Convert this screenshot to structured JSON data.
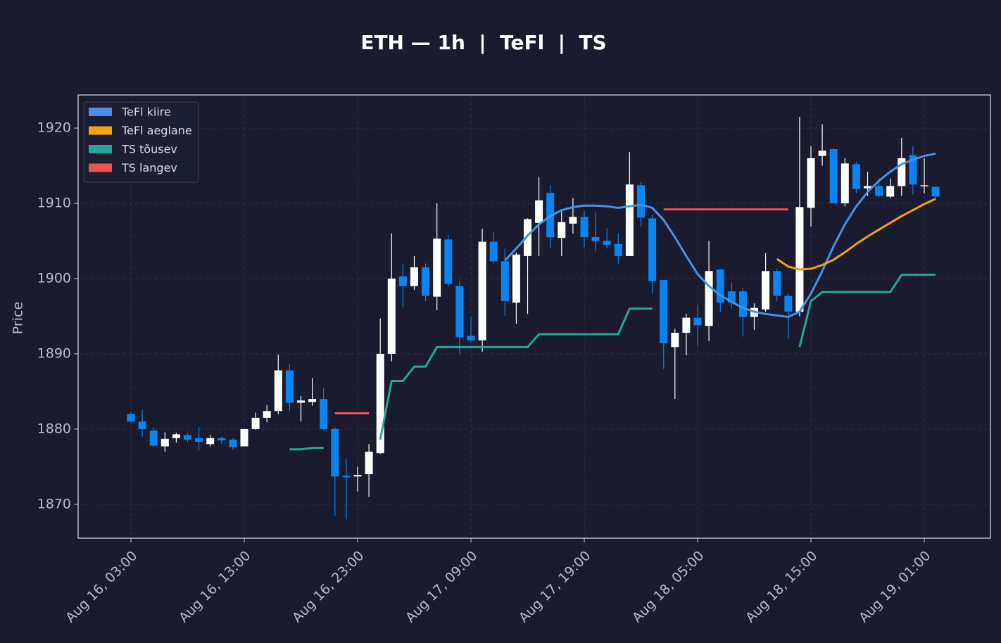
{
  "chart_data": {
    "type": "candlestick",
    "title": "ETH — 1h  |  TeFl  |  TS",
    "ylabel": "Price",
    "x": [
      "Aug 16, 03:00",
      "Aug 16, 04:00",
      "Aug 16, 05:00",
      "Aug 16, 06:00",
      "Aug 16, 07:00",
      "Aug 16, 08:00",
      "Aug 16, 09:00",
      "Aug 16, 10:00",
      "Aug 16, 11:00",
      "Aug 16, 12:00",
      "Aug 16, 13:00",
      "Aug 16, 14:00",
      "Aug 16, 15:00",
      "Aug 16, 16:00",
      "Aug 16, 17:00",
      "Aug 16, 18:00",
      "Aug 16, 19:00",
      "Aug 16, 20:00",
      "Aug 16, 21:00",
      "Aug 16, 22:00",
      "Aug 16, 23:00",
      "Aug 17, 00:00",
      "Aug 17, 01:00",
      "Aug 17, 02:00",
      "Aug 17, 03:00",
      "Aug 17, 04:00",
      "Aug 17, 05:00",
      "Aug 17, 06:00",
      "Aug 17, 07:00",
      "Aug 17, 08:00",
      "Aug 17, 09:00",
      "Aug 17, 10:00",
      "Aug 17, 11:00",
      "Aug 17, 12:00",
      "Aug 17, 13:00",
      "Aug 17, 14:00",
      "Aug 17, 15:00",
      "Aug 17, 16:00",
      "Aug 17, 17:00",
      "Aug 17, 18:00",
      "Aug 17, 19:00",
      "Aug 17, 20:00",
      "Aug 17, 21:00",
      "Aug 17, 22:00",
      "Aug 17, 23:00",
      "Aug 18, 00:00",
      "Aug 18, 01:00",
      "Aug 18, 02:00",
      "Aug 18, 03:00",
      "Aug 18, 04:00",
      "Aug 18, 05:00",
      "Aug 18, 06:00",
      "Aug 18, 07:00",
      "Aug 18, 08:00",
      "Aug 18, 09:00",
      "Aug 18, 10:00",
      "Aug 18, 11:00",
      "Aug 18, 12:00",
      "Aug 18, 13:00",
      "Aug 18, 14:00",
      "Aug 18, 15:00",
      "Aug 18, 16:00",
      "Aug 18, 17:00",
      "Aug 18, 18:00",
      "Aug 18, 19:00",
      "Aug 18, 20:00",
      "Aug 18, 21:00",
      "Aug 18, 22:00",
      "Aug 18, 23:00",
      "Aug 19, 00:00",
      "Aug 19, 01:00",
      "Aug 19, 02:00"
    ],
    "open": [
      1882,
      1881,
      1879.8,
      1877.7,
      1878.8,
      1879.2,
      1878.8,
      1878,
      1878.8,
      1878.6,
      1877.7,
      1880,
      1881.5,
      1882.4,
      1887.8,
      1883.5,
      1883.6,
      1884,
      1880,
      1873.8,
      1873.7,
      1874,
      1876.8,
      1890,
      1900.3,
      1899,
      1901.5,
      1897.6,
      1905.2,
      1899,
      1892.4,
      1891.8,
      1904.9,
      1902.3,
      1896.8,
      1903,
      1907.4,
      1911.4,
      1905.4,
      1907.3,
      1908.2,
      1905.5,
      1905,
      1904.6,
      1903,
      1912.4,
      1908,
      1899.8,
      1890.9,
      1892.8,
      1894.8,
      1893.7,
      1901.2,
      1898.3,
      1898.3,
      1894.9,
      1895.9,
      1901,
      1897.7,
      1895.6,
      1909.4,
      1916.3,
      1917.2,
      1910,
      1915.2,
      1912,
      1912.3,
      1910.9,
      1912.3,
      1916.4,
      1912.3,
      1912.2
    ],
    "high": [
      1882.3,
      1882.6,
      1880.2,
      1879.6,
      1879.5,
      1879.5,
      1880.3,
      1879.2,
      1879,
      1878.8,
      1880,
      1882.2,
      1883.2,
      1889.9,
      1888.7,
      1884.4,
      1886.8,
      1885.4,
      1880.3,
      1876,
      1875,
      1878,
      1894.7,
      1906,
      1902,
      1903,
      1902,
      1910,
      1905.8,
      1899.7,
      1895,
      1906.6,
      1906.2,
      1904,
      1903.5,
      1908,
      1913.5,
      1912.4,
      1909,
      1910.7,
      1909,
      1908.8,
      1906.7,
      1906,
      1916.8,
      1912.8,
      1908.5,
      1899.8,
      1893.3,
      1895.3,
      1896.5,
      1905,
      1901.3,
      1899.5,
      1898.7,
      1896.7,
      1903.4,
      1901.3,
      1898,
      1921.5,
      1917.6,
      1920.5,
      1917.3,
      1916,
      1915.5,
      1914.2,
      1913.3,
      1913.3,
      1918.7,
      1917.6,
      1916,
      1912.2
    ],
    "low": [
      1880.8,
      1879,
      1877.6,
      1877,
      1878.2,
      1878.3,
      1877.2,
      1877.7,
      1878,
      1877.3,
      1877.7,
      1879.9,
      1880.9,
      1882,
      1882.4,
      1881,
      1883.1,
      1879.8,
      1868.5,
      1868,
      1871.7,
      1871,
      1876.7,
      1889,
      1896.2,
      1898.5,
      1897,
      1895.8,
      1899,
      1890,
      1891.5,
      1890.3,
      1902,
      1895,
      1894,
      1895.3,
      1903,
      1904,
      1903,
      1906,
      1904.2,
      1903.6,
      1904,
      1902,
      1903,
      1907,
      1898,
      1888,
      1884,
      1889.8,
      1891,
      1891.7,
      1895.5,
      1896,
      1892.3,
      1893.2,
      1895.6,
      1897,
      1892,
      1895,
      1906.9,
      1915,
      1910,
      1909.6,
      1911.4,
      1911,
      1910.8,
      1910.7,
      1911,
      1911.2,
      1911.3,
      1910.7
    ],
    "close": [
      1881,
      1880,
      1877.8,
      1878.7,
      1879.3,
      1878.6,
      1878.3,
      1878.8,
      1878.5,
      1877.6,
      1880,
      1881.5,
      1882.4,
      1887.8,
      1883.5,
      1883.8,
      1884,
      1880,
      1873.7,
      1873.6,
      1873.9,
      1877,
      1890,
      1900,
      1899,
      1901.5,
      1897.7,
      1905.3,
      1899.3,
      1892.2,
      1891.8,
      1904.9,
      1902.3,
      1897,
      1903.2,
      1907.9,
      1910.4,
      1905.5,
      1907.5,
      1908.2,
      1905.5,
      1905,
      1904.5,
      1903,
      1912.5,
      1908.1,
      1899.7,
      1891.4,
      1892.8,
      1894.8,
      1893.8,
      1901,
      1896.8,
      1896.8,
      1894.9,
      1896.1,
      1901,
      1897.7,
      1895.6,
      1909.5,
      1916,
      1917,
      1910,
      1915.3,
      1911.9,
      1912.3,
      1911,
      1912.3,
      1916,
      1912.5,
      1912.4,
      1910.9
    ],
    "up_color": "#ffffff",
    "down_color": "#0a84f0",
    "series": [
      {
        "name": "TeFl kiire",
        "color": "#4a90e2",
        "values": [
          null,
          null,
          null,
          null,
          null,
          null,
          null,
          null,
          null,
          null,
          null,
          null,
          null,
          null,
          null,
          null,
          null,
          null,
          null,
          null,
          null,
          null,
          null,
          null,
          null,
          null,
          null,
          null,
          null,
          null,
          null,
          null,
          null,
          1902.4,
          1904,
          1905.7,
          1907.2,
          1908.3,
          1909.1,
          1909.5,
          1909.7,
          1909.7,
          1909.6,
          1909.4,
          1909.6,
          1909.8,
          1909.4,
          1907.8,
          1905.5,
          1903,
          1900.6,
          1899,
          1897.8,
          1896.9,
          1896.1,
          1895.6,
          1895.3,
          1895.1,
          1894.9,
          1895.6,
          1898,
          1901,
          1904.3,
          1907.2,
          1909.6,
          1911.5,
          1913,
          1914.2,
          1915.2,
          1915.8,
          1916.3,
          1916.6
        ]
      },
      {
        "name": "TeFl aeglane",
        "color": "#f0a30a",
        "values": [
          null,
          null,
          null,
          null,
          null,
          null,
          null,
          null,
          null,
          null,
          null,
          null,
          null,
          null,
          null,
          null,
          null,
          null,
          null,
          null,
          null,
          null,
          null,
          null,
          null,
          null,
          null,
          null,
          null,
          null,
          null,
          null,
          null,
          null,
          null,
          null,
          null,
          null,
          null,
          null,
          null,
          null,
          null,
          null,
          null,
          null,
          null,
          null,
          null,
          null,
          null,
          null,
          null,
          null,
          null,
          null,
          null,
          1902.6,
          1901.6,
          1901.2,
          1901.3,
          1901.8,
          1902.5,
          1903.5,
          1904.6,
          1905.6,
          1906.5,
          1907.4,
          1908.3,
          1909.1,
          1909.9,
          1910.6
        ]
      },
      {
        "name": "TS tõusev",
        "color": "#26a69a",
        "values": [
          null,
          null,
          null,
          null,
          null,
          null,
          null,
          null,
          null,
          null,
          null,
          null,
          null,
          null,
          1877.3,
          1877.3,
          1877.5,
          1877.5,
          null,
          null,
          null,
          null,
          1878.6,
          1886.4,
          1886.4,
          1888.3,
          1888.3,
          1890.9,
          1890.9,
          1890.9,
          1890.9,
          1890.9,
          1890.9,
          1890.9,
          1890.9,
          1890.9,
          1892.6,
          1892.6,
          1892.6,
          1892.6,
          1892.6,
          1892.6,
          1892.6,
          1892.6,
          1896,
          1896,
          1896,
          null,
          null,
          null,
          null,
          null,
          null,
          null,
          null,
          null,
          null,
          null,
          null,
          1890.9,
          1897,
          1898.2,
          1898.2,
          1898.2,
          1898.2,
          1898.2,
          1898.2,
          1898.2,
          1900.5,
          1900.5,
          1900.5,
          1900.5
        ]
      },
      {
        "name": "TS langev",
        "color": "#ef5350",
        "values": [
          null,
          null,
          null,
          null,
          null,
          null,
          null,
          null,
          null,
          null,
          null,
          null,
          null,
          null,
          null,
          null,
          null,
          null,
          1882.1,
          1882.1,
          1882.1,
          1882.1,
          null,
          null,
          null,
          null,
          null,
          null,
          null,
          null,
          null,
          null,
          null,
          null,
          null,
          null,
          null,
          null,
          null,
          null,
          null,
          null,
          null,
          null,
          null,
          null,
          null,
          1909.2,
          1909.2,
          1909.2,
          1909.2,
          1909.2,
          1909.2,
          1909.2,
          1909.2,
          1909.2,
          1909.2,
          1909.2,
          1909.2,
          null,
          null,
          null,
          null,
          null,
          null,
          null,
          null,
          null,
          null,
          null,
          null,
          null
        ]
      }
    ],
    "ylim": [
      1865.5,
      1924.4
    ],
    "yticks": [
      1870,
      1880,
      1890,
      1900,
      1910,
      1920
    ],
    "xticks": [
      "Aug 16, 03:00",
      "Aug 16, 13:00",
      "Aug 16, 23:00",
      "Aug 17, 09:00",
      "Aug 17, 19:00",
      "Aug 18, 05:00",
      "Aug 18, 15:00",
      "Aug 19, 01:00"
    ],
    "grid": true,
    "legend": "upper-left"
  }
}
